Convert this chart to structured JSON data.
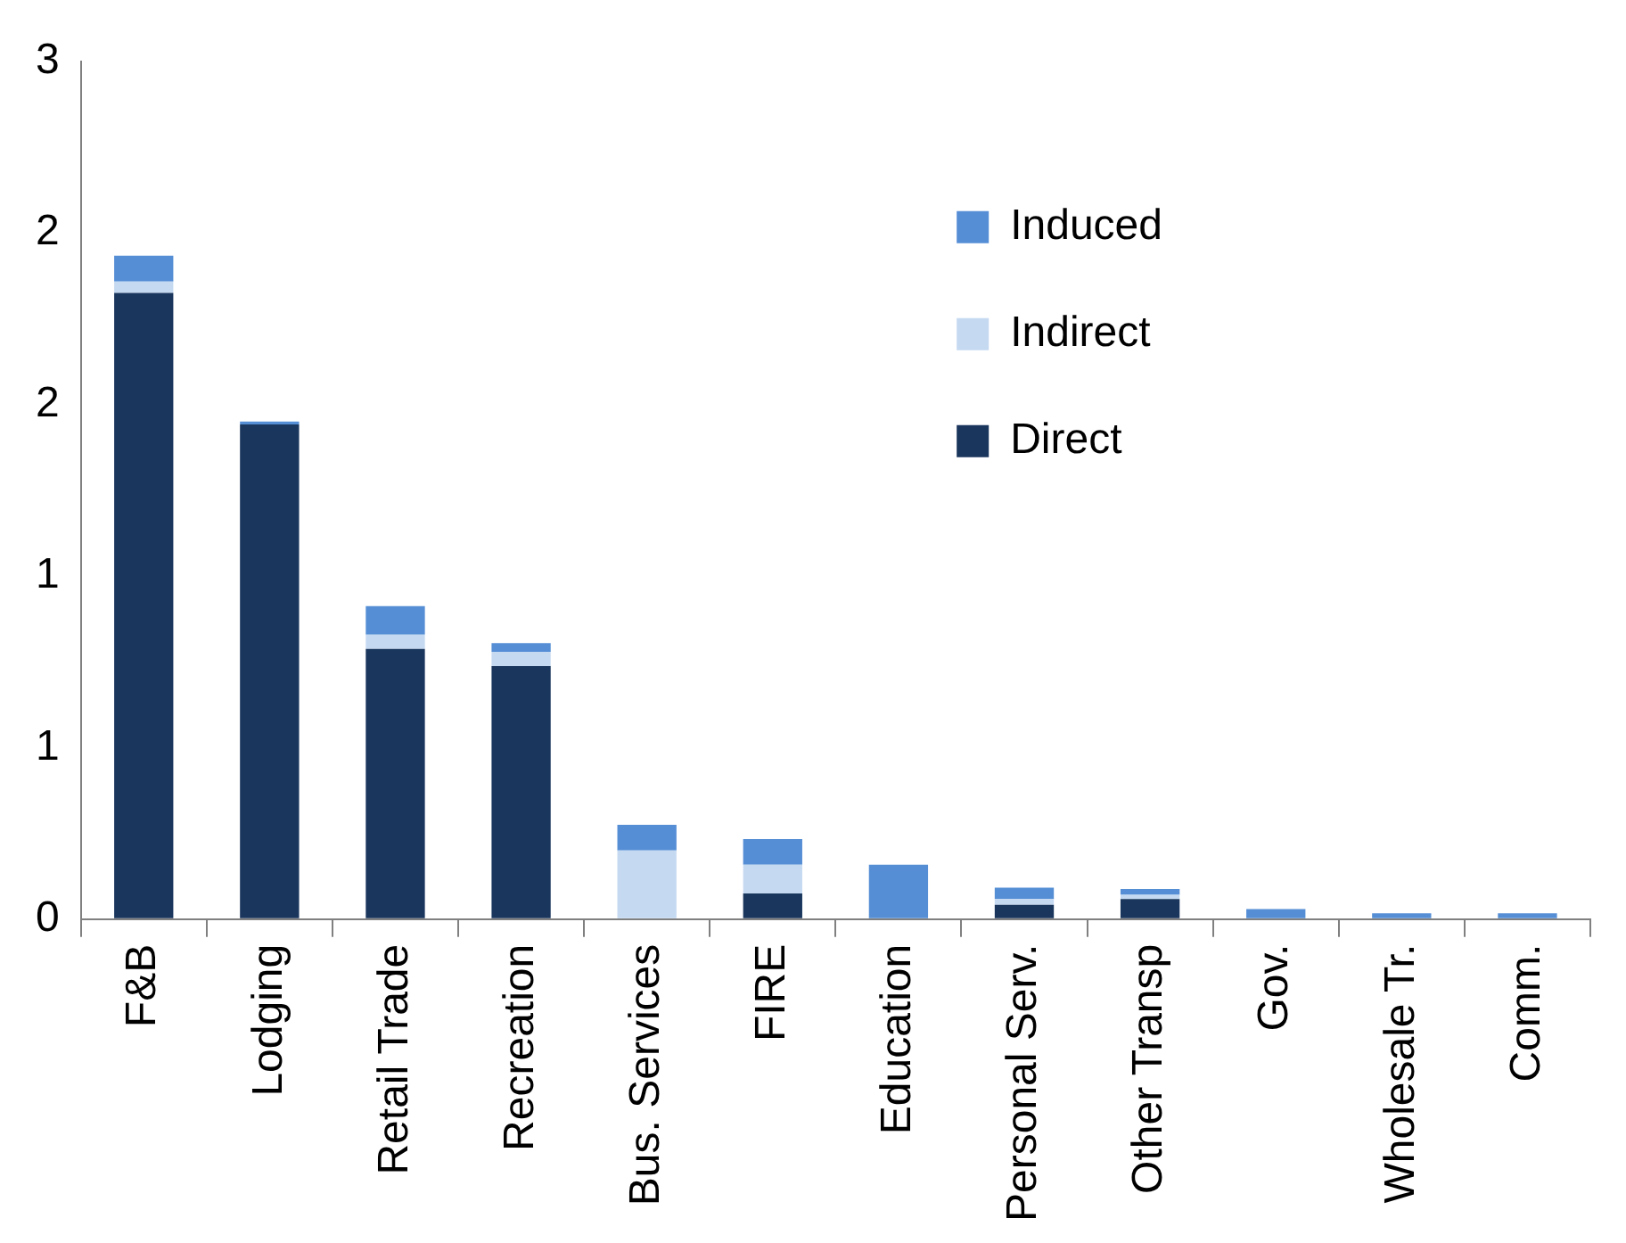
{
  "chart_data": {
    "type": "bar",
    "stacked": true,
    "categories": [
      "F&B",
      "Lodging",
      "Retail Trade",
      "Recreation",
      "Bus. Services",
      "FIRE",
      "Education",
      "Personal Serv.",
      "Other Transp",
      "Gov.",
      "Wholesale Tr.",
      "Comm."
    ],
    "series": [
      {
        "name": "Direct",
        "color": "#1a365d",
        "values": [
          2.19,
          1.73,
          0.945,
          0.885,
          0,
          0.09,
          0,
          0.05,
          0.07,
          0,
          0,
          0
        ]
      },
      {
        "name": "Indirect",
        "color": "#c5d9f1",
        "values": [
          0.04,
          0,
          0.05,
          0.05,
          0.24,
          0.1,
          null,
          0.02,
          0.015,
          null,
          null,
          null
        ]
      },
      {
        "name": "Induced",
        "color": "#558ed5",
        "values": [
          0.09,
          0.01,
          0.1,
          0.03,
          0.09,
          0.09,
          0.19,
          0.04,
          0.02,
          0.035,
          0.02,
          0.02
        ]
      }
    ],
    "ylim": [
      0,
      3
    ],
    "yticks": [
      0,
      {
        "value": 0.6,
        "label": "1"
      },
      {
        "value": 1.2,
        "label": "1"
      },
      {
        "value": 1.8,
        "label": "2"
      },
      {
        "value": 2.4,
        "label": "2"
      },
      3
    ],
    "grid": false,
    "legend": "top right"
  }
}
